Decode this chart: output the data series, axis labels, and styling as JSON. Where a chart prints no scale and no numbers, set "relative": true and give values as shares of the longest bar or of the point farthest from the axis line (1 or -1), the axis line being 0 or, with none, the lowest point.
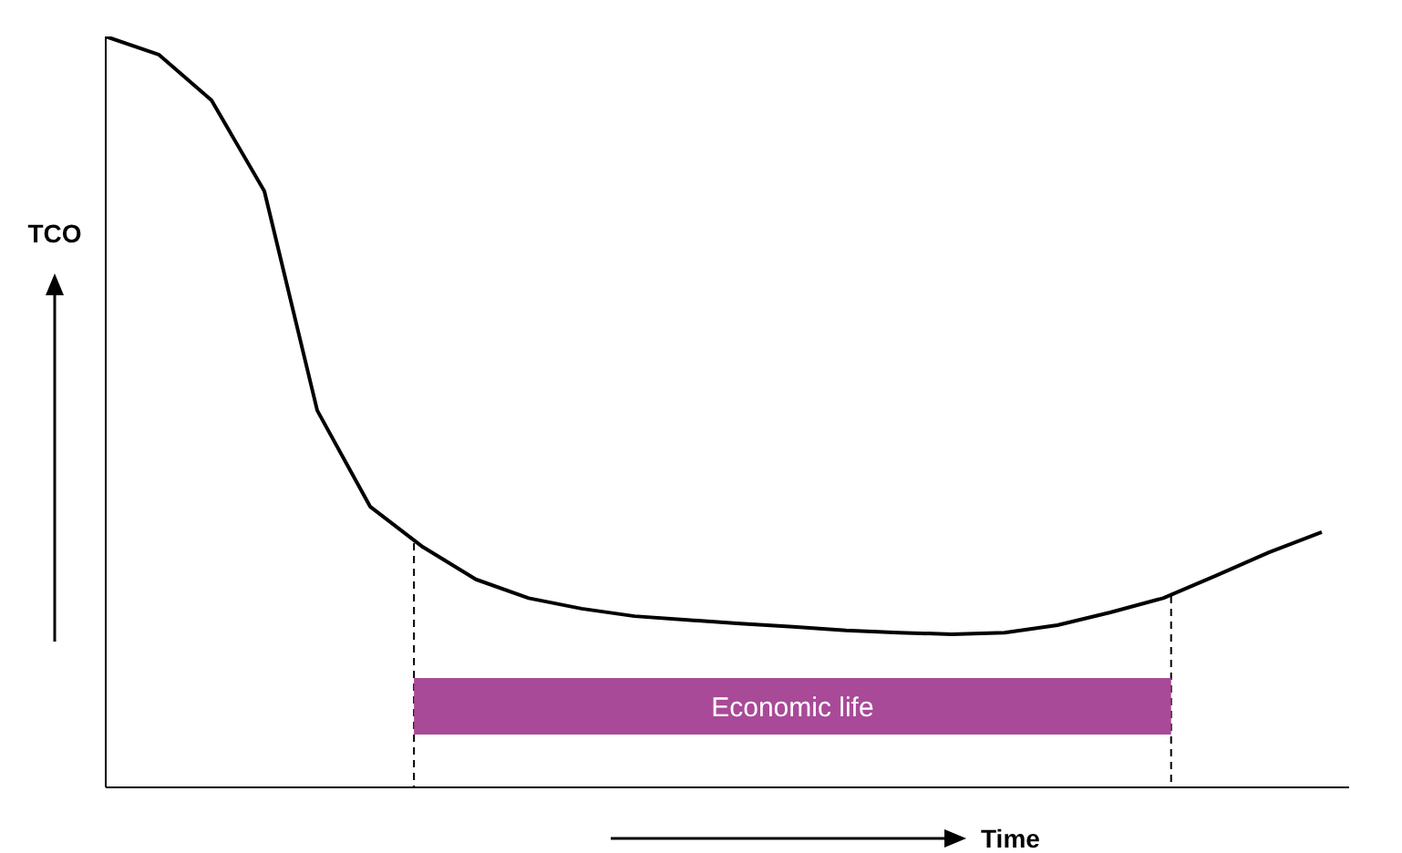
{
  "chart_data": {
    "type": "line",
    "relative": true,
    "xlabel": "Time",
    "ylabel": "TCO",
    "categories": [
      null,
      null,
      null,
      null,
      null,
      null,
      null,
      null,
      null,
      null,
      null,
      null,
      null,
      null,
      null,
      null,
      null,
      null,
      null,
      null,
      null,
      null,
      null,
      null
    ],
    "series": [
      {
        "color": "#000000",
        "values": [
          1.0,
          0.976,
          0.915,
          0.794,
          0.502,
          0.374,
          0.32,
          0.277,
          0.252,
          0.238,
          0.228,
          0.223,
          0.218,
          0.214,
          0.209,
          0.206,
          0.204,
          0.206,
          0.216,
          0.233,
          0.252,
          0.282,
          0.313,
          0.34
        ]
      }
    ],
    "annotations": [
      "Economic life"
    ],
    "grid": false,
    "legend": false,
    "marker": "none",
    "line_style": "solid"
  }
}
